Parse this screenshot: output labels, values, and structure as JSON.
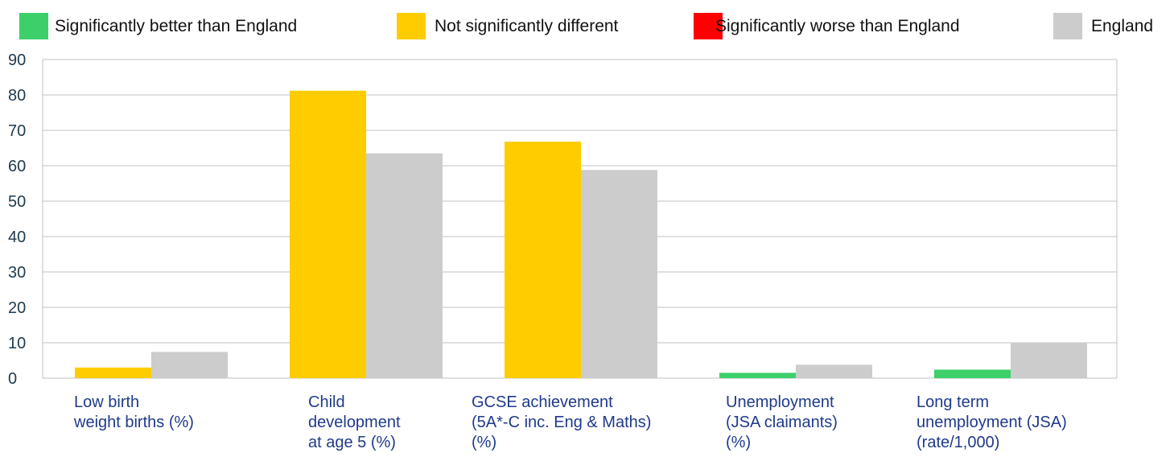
{
  "legend": [
    {
      "label": "Significantly better than England",
      "color": "#3ccf6a"
    },
    {
      "label": "Not significantly different",
      "color": "#ffcc00"
    },
    {
      "label": "Significantly worse than England",
      "color": "#ff0000"
    },
    {
      "label": "England",
      "color": "#cccccc"
    }
  ],
  "chart_data": {
    "type": "bar",
    "categories": [
      [
        "Low birth",
        "weight births (%)"
      ],
      [
        "Child",
        "development",
        "at age 5 (%)"
      ],
      [
        "GCSE achievement",
        "(5A*-C inc. Eng & Maths)",
        "(%)"
      ],
      [
        "Unemployment",
        "(JSA claimants)",
        "(%)"
      ],
      [
        "Long term",
        "unemployment (JSA)",
        "(rate/1,000)"
      ]
    ],
    "series": [
      {
        "values": [
          3.0,
          81.2,
          66.8,
          1.5,
          2.4
        ],
        "status": [
          "not-different",
          "not-different",
          "not-different",
          "better",
          "better"
        ]
      },
      {
        "name": "England",
        "values": [
          7.4,
          63.5,
          58.8,
          3.8,
          10.1
        ]
      }
    ],
    "yticks": [
      0,
      10,
      20,
      30,
      40,
      50,
      60,
      70,
      80,
      90
    ],
    "ylim": [
      0,
      90
    ],
    "grid": true,
    "legend_placement": "top",
    "colors": {
      "better": "#3ccf6a",
      "not-different": "#ffcc00",
      "worse": "#ff0000",
      "england": "#cccccc",
      "grid": "#c0c0c0",
      "axis_text": "#1f3a4d",
      "label_text": "#1f3a8a"
    }
  }
}
